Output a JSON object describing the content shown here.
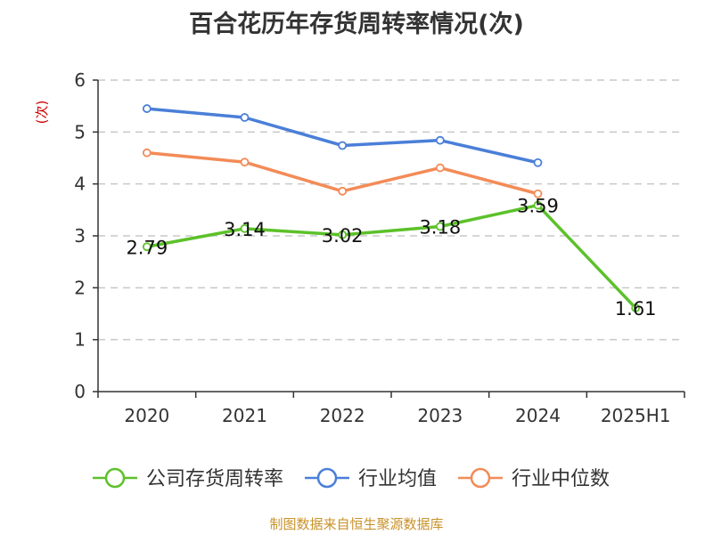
{
  "chart_data": {
    "type": "line",
    "title": "百合花历年存货周转率情况(次)",
    "ylabel": "(次)",
    "xlabel": "",
    "categories": [
      "2020",
      "2021",
      "2022",
      "2023",
      "2024",
      "2025H1"
    ],
    "ylim": [
      0,
      6
    ],
    "yticks": [
      0,
      1,
      2,
      3,
      4,
      5,
      6
    ],
    "grid": true,
    "legend_position": "bottom",
    "series": [
      {
        "name": "公司存货周转率",
        "color": "#5cc12a",
        "show_labels": true,
        "values": [
          2.79,
          3.14,
          3.02,
          3.18,
          3.59,
          1.61
        ],
        "labels": [
          "2.79",
          "3.14",
          "3.02",
          "3.18",
          "3.59",
          "1.61"
        ]
      },
      {
        "name": "行业均值",
        "color": "#4a7fd8",
        "show_labels": false,
        "values": [
          5.45,
          5.28,
          4.74,
          4.84,
          4.41,
          null
        ]
      },
      {
        "name": "行业中位数",
        "color": "#f38b57",
        "show_labels": false,
        "values": [
          4.6,
          4.42,
          3.86,
          4.31,
          3.81,
          null
        ]
      }
    ],
    "source": "制图数据来自恒生聚源数据库"
  }
}
